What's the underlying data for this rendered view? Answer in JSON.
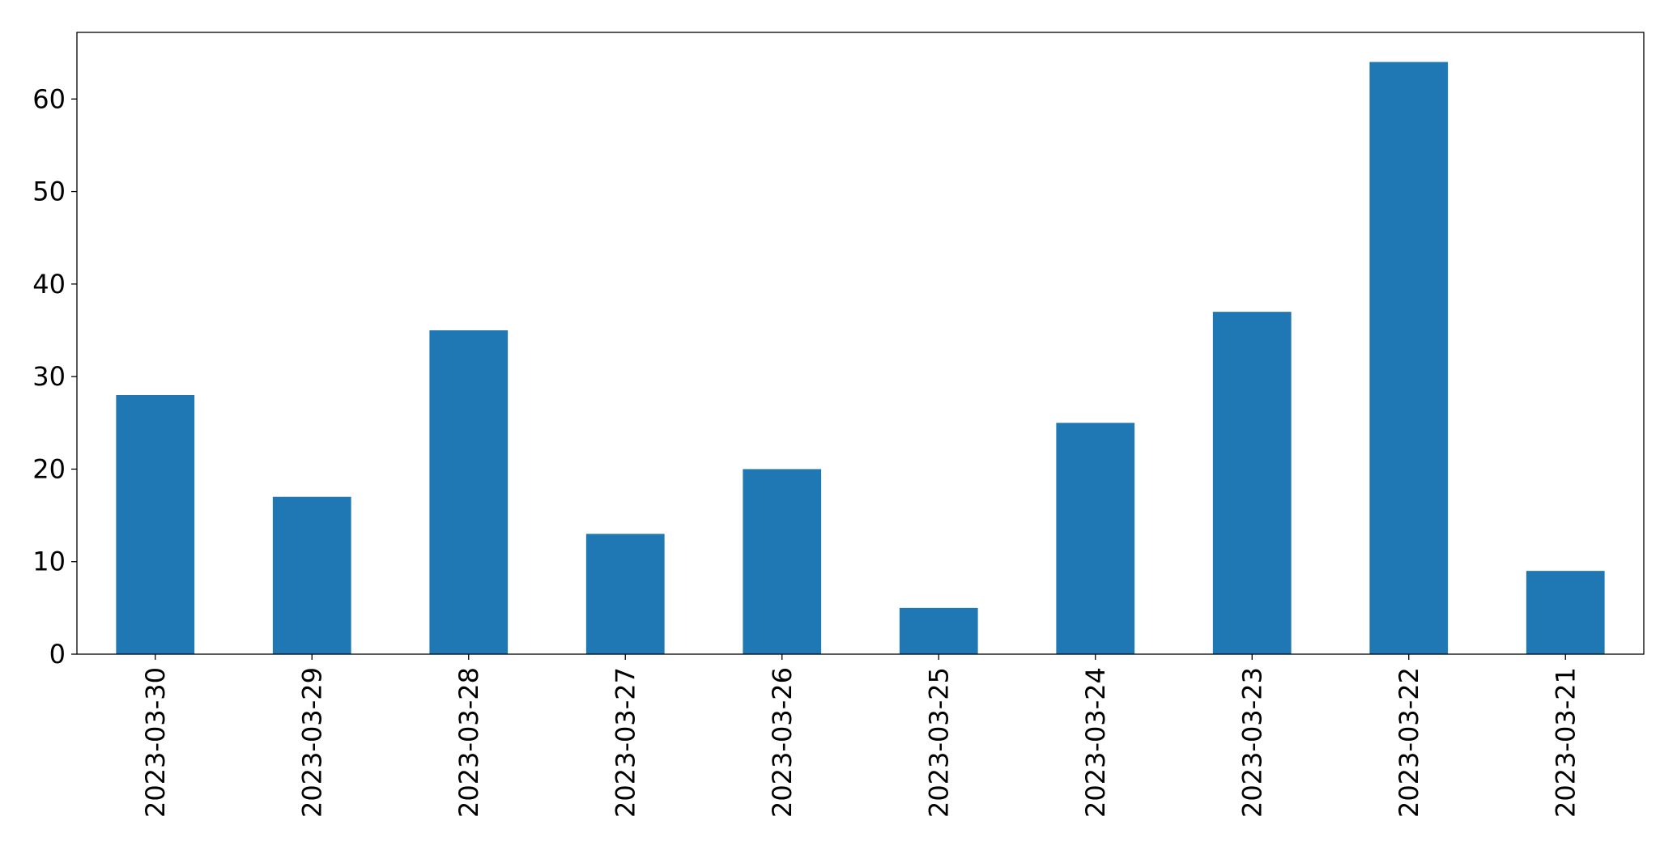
{
  "chart_data": {
    "type": "bar",
    "categories": [
      "2023-03-30",
      "2023-03-29",
      "2023-03-28",
      "2023-03-27",
      "2023-03-26",
      "2023-03-25",
      "2023-03-24",
      "2023-03-23",
      "2023-03-22",
      "2023-03-21"
    ],
    "values": [
      28,
      17,
      35,
      13,
      20,
      5,
      25,
      37,
      64,
      9
    ],
    "color": "#1f77b4",
    "ylim": [
      0,
      67.2
    ],
    "yticks": [
      0,
      10,
      20,
      30,
      40,
      50,
      60
    ],
    "grid": false
  }
}
